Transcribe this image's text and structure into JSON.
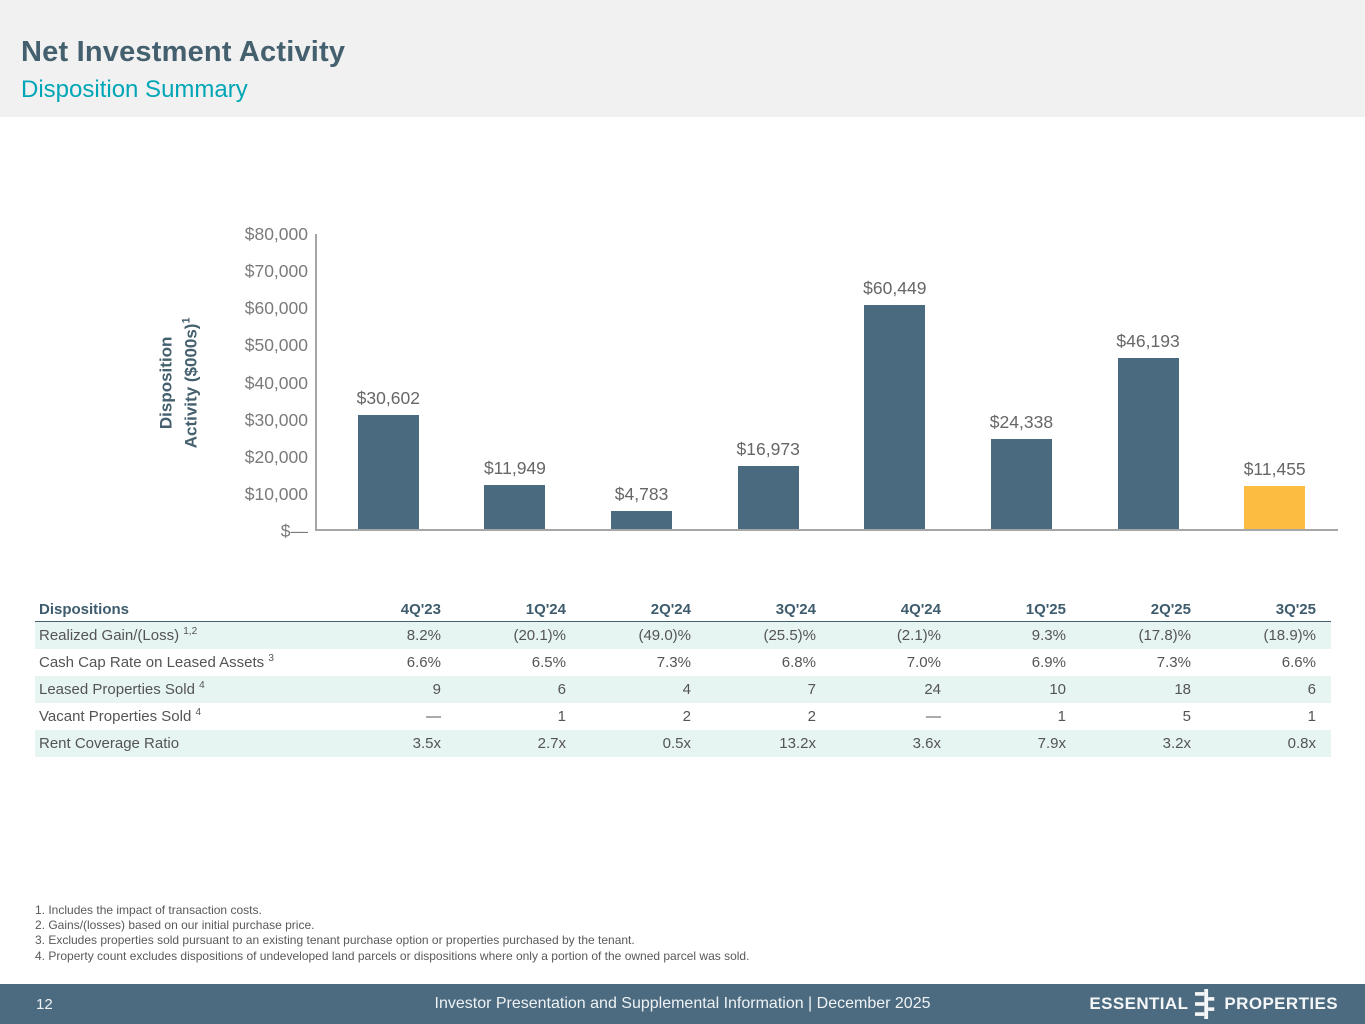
{
  "header": {
    "title": "Net Investment Activity",
    "subtitle": "Disposition Summary"
  },
  "chart_data": {
    "type": "bar",
    "ylabel_line1": "Disposition",
    "ylabel_line2": "Activity ($000s)",
    "ylabel_sup": "1",
    "categories": [
      "4Q'23",
      "1Q'24",
      "2Q'24",
      "3Q'24",
      "4Q'24",
      "1Q'25",
      "2Q'25",
      "3Q'25"
    ],
    "values": [
      30602,
      11949,
      4783,
      16973,
      60449,
      24338,
      46193,
      11455
    ],
    "labels": [
      "$30,602",
      "$11,949",
      "$4,783",
      "$16,973",
      "$60,449",
      "$24,338",
      "$46,193",
      "$11,455"
    ],
    "y_ticks": [
      "$80,000",
      "$70,000",
      "$60,000",
      "$50,000",
      "$40,000",
      "$30,000",
      "$20,000",
      "$10,000",
      "$—"
    ],
    "ylim": [
      0,
      80000
    ],
    "bar_color": "#4a6a7f",
    "highlight_color": "#fbbc41",
    "highlight_index": 7,
    "grid": "off",
    "legend": "none"
  },
  "table": {
    "title_label": "Dispositions",
    "columns": [
      "4Q'23",
      "1Q'24",
      "2Q'24",
      "3Q'24",
      "4Q'24",
      "1Q'25",
      "2Q'25",
      "3Q'25"
    ],
    "rows": [
      {
        "label": "Realized Gain/(Loss)",
        "sup": "1,2",
        "values": [
          "8.2%",
          "(20.1)%",
          "(49.0)%",
          "(25.5)%",
          "(2.1)%",
          "9.3%",
          "(17.8)%",
          "(18.9)%"
        ],
        "shaded": true
      },
      {
        "label": "Cash Cap Rate on Leased Assets",
        "sup": "3",
        "values": [
          "6.6%",
          "6.5%",
          "7.3%",
          "6.8%",
          "7.0%",
          "6.9%",
          "7.3%",
          "6.6%"
        ],
        "shaded": false
      },
      {
        "label": "Leased Properties Sold",
        "sup": "4",
        "values": [
          "9",
          "6",
          "4",
          "7",
          "24",
          "10",
          "18",
          "6"
        ],
        "shaded": true
      },
      {
        "label": "Vacant Properties Sold",
        "sup": "4",
        "values": [
          "—",
          "1",
          "2",
          "2",
          "—",
          "1",
          "5",
          "1"
        ],
        "shaded": false
      },
      {
        "label": "Rent Coverage Ratio",
        "sup": "",
        "values": [
          "3.5x",
          "2.7x",
          "0.5x",
          "13.2x",
          "3.6x",
          "7.9x",
          "3.2x",
          "0.8x"
        ],
        "shaded": true
      }
    ]
  },
  "footnotes": [
    "1. Includes the impact of transaction costs.",
    "2. Gains/(losses) based on our initial purchase price.",
    "3. Excludes properties sold pursuant to an existing tenant purchase option or properties purchased by the tenant.",
    "4. Property count excludes dispositions of undeveloped land parcels or dispositions where only a portion of the owned parcel was sold."
  ],
  "footer": {
    "page_number": "12",
    "center_text": "Investor Presentation and Supplemental Information |  December 2025",
    "logo_left": "ESSENTIAL",
    "logo_right": "PROPERTIES"
  },
  "colors": {
    "accent_teal": "#00a6b6",
    "title_slate": "#44606e",
    "bar_slate": "#4a6a7f",
    "bar_highlight": "#fbbc41",
    "footer_bg": "#4c6b80",
    "row_shade": "#e6f4f2"
  }
}
